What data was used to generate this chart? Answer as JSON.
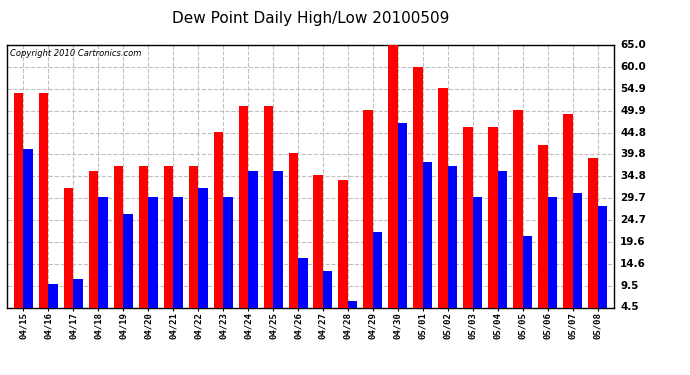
{
  "title": "Dew Point Daily High/Low 20100509",
  "copyright": "Copyright 2010 Cartronics.com",
  "ylabel_right": [
    "65.0",
    "60.0",
    "54.9",
    "49.9",
    "44.8",
    "39.8",
    "34.8",
    "29.7",
    "24.7",
    "19.6",
    "14.6",
    "9.5",
    "4.5"
  ],
  "yticks": [
    65.0,
    60.0,
    54.9,
    49.9,
    44.8,
    39.8,
    34.8,
    29.7,
    24.7,
    19.6,
    14.6,
    9.5,
    4.5
  ],
  "ylim": [
    4.5,
    65.0
  ],
  "categories": [
    "04/15",
    "04/16",
    "04/17",
    "04/18",
    "04/19",
    "04/20",
    "04/21",
    "04/22",
    "04/23",
    "04/24",
    "04/25",
    "04/26",
    "04/27",
    "04/28",
    "04/29",
    "04/30",
    "05/01",
    "05/02",
    "05/03",
    "05/04",
    "05/05",
    "05/06",
    "05/07",
    "05/08"
  ],
  "high_values": [
    54.0,
    54.0,
    32.0,
    36.0,
    37.0,
    37.0,
    37.0,
    37.0,
    45.0,
    51.0,
    51.0,
    40.0,
    35.0,
    34.0,
    50.0,
    65.0,
    60.0,
    55.0,
    46.0,
    46.0,
    50.0,
    42.0,
    49.0,
    39.0
  ],
  "low_values": [
    41.0,
    10.0,
    11.0,
    30.0,
    26.0,
    30.0,
    30.0,
    32.0,
    30.0,
    36.0,
    36.0,
    16.0,
    13.0,
    6.0,
    22.0,
    47.0,
    38.0,
    37.0,
    30.0,
    36.0,
    21.0,
    30.0,
    31.0,
    28.0
  ],
  "bar_color_high": "#ff0000",
  "bar_color_low": "#0000ff",
  "background_color": "#ffffff",
  "plot_bg_color": "#ffffff",
  "grid_color": "#c0c0c0",
  "title_fontsize": 11,
  "figsize": [
    6.9,
    3.75
  ],
  "dpi": 100
}
